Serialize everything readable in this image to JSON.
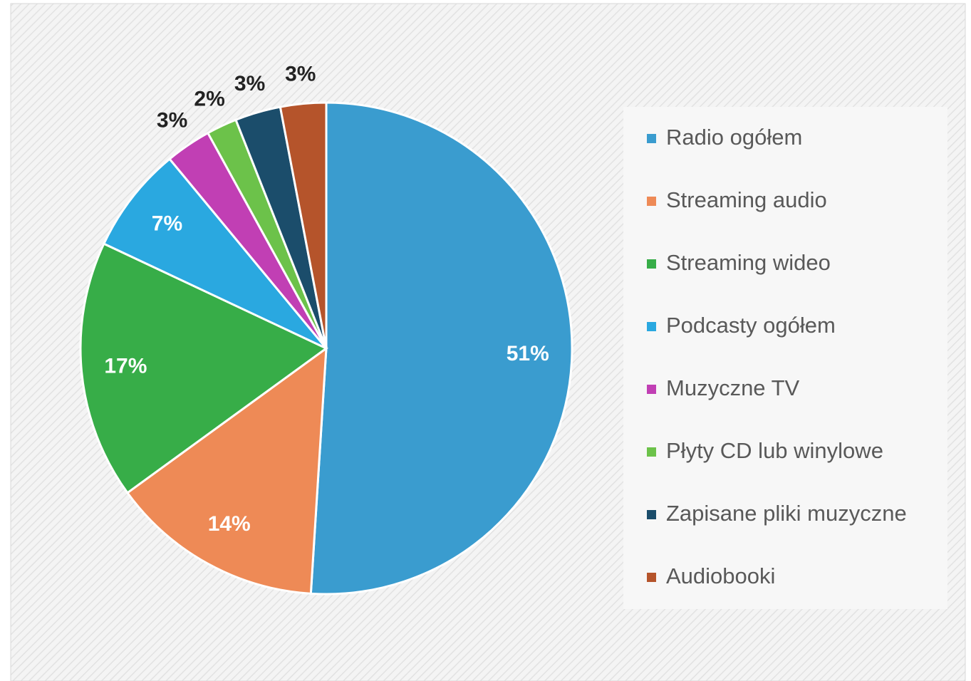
{
  "chart_data": {
    "type": "pie",
    "categories": [
      "Radio ogółem",
      "Streaming audio",
      "Streaming wideo",
      "Podcasty ogółem",
      "Muzyczne TV",
      "Płyty CD lub winylowe",
      "Zapisane pliki muzyczne",
      "Audiobooki"
    ],
    "values": [
      51,
      14,
      17,
      7,
      3,
      2,
      3,
      3
    ],
    "value_labels": [
      "51%",
      "14%",
      "17%",
      "7%",
      "3%",
      "2%",
      "3%",
      "3%"
    ],
    "colors": [
      "#3a9ccf",
      "#ee8a56",
      "#37ad48",
      "#2aa8e0",
      "#c13fb4",
      "#6cc24a",
      "#1b4d6b",
      "#b5542b"
    ],
    "legend": "right"
  }
}
